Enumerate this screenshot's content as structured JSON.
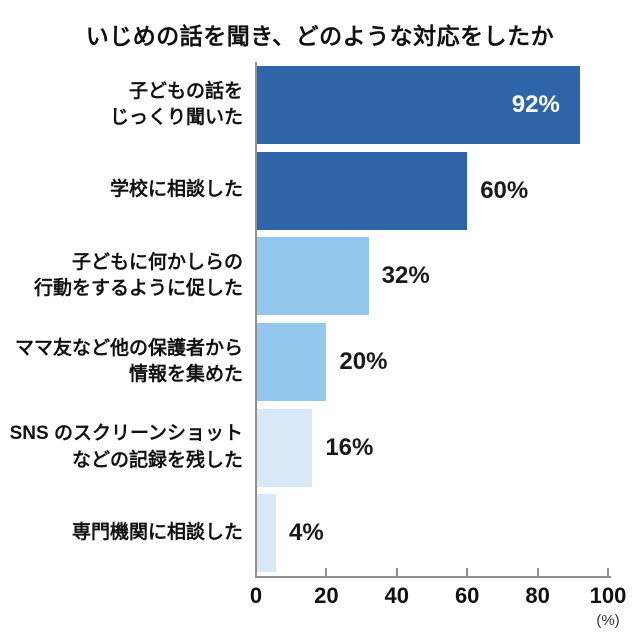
{
  "title": "いじめの話を聞き、どのような対応をしたか",
  "colors": {
    "dark_blue": "#2e64a8",
    "medium_blue": "#93c8ec",
    "pale_blue": "#d8e8f7",
    "axis": "#8f8f8f",
    "text": "#111111",
    "value_inside": "#ffffff",
    "value_outside": "#1a1a1a",
    "background": "#ffffff"
  },
  "axis": {
    "tick_labels": [
      "0",
      "20",
      "40",
      "60",
      "80",
      "100"
    ],
    "tick_values": [
      0,
      20,
      40,
      60,
      80,
      100
    ],
    "unit_label": "(%)"
  },
  "chart_data": {
    "type": "bar",
    "orientation": "horizontal",
    "title": "いじめの話を聞き、どのような対応をしたか",
    "xlabel": "(%)",
    "ylabel": "",
    "xlim": [
      0,
      100
    ],
    "x_ticks": [
      0,
      20,
      40,
      60,
      80,
      100
    ],
    "grid": false,
    "legend": false,
    "categories": [
      "子どもの話を\nじっくり聞いた",
      "学校に相談した",
      "子どもに何かしらの\n行動をするように促した",
      "ママ友など他の保護者から\n情報を集めた",
      "SNS のスクリーンショット\nなどの記録を残した",
      "専門機関に相談した"
    ],
    "values": [
      92,
      60,
      32,
      20,
      16,
      4
    ],
    "bars": [
      {
        "category": "子どもの話を\nじっくり聞いた",
        "value": 92,
        "value_label": "92%",
        "color": "#2e64a8",
        "value_label_position": "inside",
        "value_label_color": "#ffffff"
      },
      {
        "category": "学校に相談した",
        "value": 60,
        "value_label": "60%",
        "color": "#2e64a8",
        "value_label_position": "outside",
        "value_label_color": "#1a1a1a"
      },
      {
        "category": "子どもに何かしらの\n行動をするように促した",
        "value": 32,
        "value_label": "32%",
        "color": "#93c8ec",
        "value_label_position": "outside",
        "value_label_color": "#1a1a1a"
      },
      {
        "category": "ママ友など他の保護者から\n情報を集めた",
        "value": 20,
        "value_label": "20%",
        "color": "#93c8ec",
        "value_label_position": "outside",
        "value_label_color": "#1a1a1a"
      },
      {
        "category": "SNS のスクリーンショット\nなどの記録を残した",
        "value": 16,
        "value_label": "16%",
        "color": "#d8e8f7",
        "value_label_position": "outside",
        "value_label_color": "#1a1a1a"
      },
      {
        "category": "専門機関に相談した",
        "value": 4,
        "value_label": "4%",
        "color": "#d8e8f7",
        "value_label_position": "outside",
        "value_label_color": "#1a1a1a"
      }
    ]
  }
}
